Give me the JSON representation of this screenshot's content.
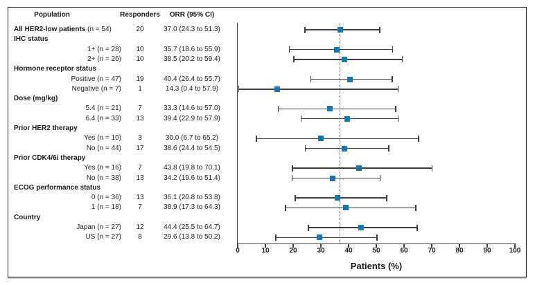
{
  "figure": {
    "columns": {
      "population": "Population",
      "responders": "Responders",
      "orr": "ORR (95% CI)"
    },
    "xlabel": "Patients (%)"
  },
  "colors": {
    "marker_blue": "#1878ab",
    "ci_line": "#3d3d3d",
    "axis": "#3d3d3d",
    "reference_dotted": "#7f7f7f",
    "text": "#1a1a1a"
  },
  "chart_data": {
    "type": "scatter",
    "subtype": "forest-plot",
    "title": "",
    "xlabel": "Patients (%)",
    "xlim": [
      0,
      100
    ],
    "xticks": [
      0,
      10,
      20,
      30,
      40,
      50,
      60,
      70,
      80,
      90,
      100
    ],
    "reference_line_x": 37.0,
    "grid": false,
    "legend": "none",
    "rows": [
      {
        "kind": "main",
        "label_bold": "All HER2-low patients",
        "label_rest": " (n = 54)",
        "responders": "20",
        "orr": "37.0 (24.3 to 51.3)",
        "estimate": 37.0,
        "ci_low": 24.3,
        "ci_high": 51.3
      },
      {
        "kind": "group",
        "label_bold": "IHC status"
      },
      {
        "kind": "item",
        "label": "1+ (n = 28)",
        "responders": "10",
        "orr": "35.7 (18.6 to 55.9)",
        "estimate": 35.7,
        "ci_low": 18.6,
        "ci_high": 55.9
      },
      {
        "kind": "item",
        "label": "2+ (n = 26)",
        "responders": "10",
        "orr": "38.5 (20.2 to 59.4)",
        "estimate": 38.5,
        "ci_low": 20.2,
        "ci_high": 59.4
      },
      {
        "kind": "group",
        "label_bold": "Hormone receptor status"
      },
      {
        "kind": "item",
        "label": "Positive (n = 47)",
        "responders": "19",
        "orr": "40.4 (26.4 to 55.7)",
        "estimate": 40.4,
        "ci_low": 26.4,
        "ci_high": 55.7
      },
      {
        "kind": "item",
        "label": "Negative (n = 7)",
        "responders": "1",
        "orr": "14.3 (0.4 to 57.9)",
        "estimate": 14.3,
        "ci_low": 0.4,
        "ci_high": 57.9
      },
      {
        "kind": "group",
        "label_bold": "Dose (mg/kg)"
      },
      {
        "kind": "item",
        "label": "5.4 (n = 21)",
        "responders": "7",
        "orr": "33.3 (14.6 to 57.0)",
        "estimate": 33.3,
        "ci_low": 14.6,
        "ci_high": 57.0
      },
      {
        "kind": "item",
        "label": "6.4 (n = 33)",
        "responders": "13",
        "orr": "39.4 (22.9 to 57.9)",
        "estimate": 39.4,
        "ci_low": 22.9,
        "ci_high": 57.9
      },
      {
        "kind": "group",
        "label_bold": "Prior HER2 therapy"
      },
      {
        "kind": "item",
        "label": "Yes (n = 10)",
        "responders": "3",
        "orr": "30.0 (6.7 to 65.2)",
        "estimate": 30.0,
        "ci_low": 6.7,
        "ci_high": 65.2
      },
      {
        "kind": "item",
        "label": "No (n = 44)",
        "responders": "17",
        "orr": "38.6 (24.4 to 54.5)",
        "estimate": 38.6,
        "ci_low": 24.4,
        "ci_high": 54.5
      },
      {
        "kind": "group",
        "label_bold": "Prior CDK4/6i therapy"
      },
      {
        "kind": "item",
        "label": "Yes (n = 16)",
        "responders": "7",
        "orr": "43.8 (19.8 to 70.1)",
        "estimate": 43.8,
        "ci_low": 19.8,
        "ci_high": 70.1
      },
      {
        "kind": "item",
        "label": "No (n = 38)",
        "responders": "13",
        "orr": "34.2 (19.6 to 51.4)",
        "estimate": 34.2,
        "ci_low": 19.6,
        "ci_high": 51.4
      },
      {
        "kind": "group",
        "label_bold": "ECOG performance status"
      },
      {
        "kind": "item",
        "label": "0 (n = 36)",
        "responders": "13",
        "orr": "36.1 (20.8 to 53.8)",
        "estimate": 36.1,
        "ci_low": 20.8,
        "ci_high": 53.8
      },
      {
        "kind": "item",
        "label": "1 (n = 18)",
        "responders": "7",
        "orr": "38.9 (17.3 to 64.3)",
        "estimate": 38.9,
        "ci_low": 17.3,
        "ci_high": 64.3
      },
      {
        "kind": "group",
        "label_bold": "Country"
      },
      {
        "kind": "item",
        "label": "Japan (n = 27)",
        "responders": "12",
        "orr": "44.4 (25.5 to 64.7)",
        "estimate": 44.4,
        "ci_low": 25.5,
        "ci_high": 64.7
      },
      {
        "kind": "item",
        "label": "US (n = 27)",
        "responders": "8",
        "orr": "29.6 (13.8 to 50.2)",
        "estimate": 29.6,
        "ci_low": 13.8,
        "ci_high": 50.2
      }
    ]
  }
}
